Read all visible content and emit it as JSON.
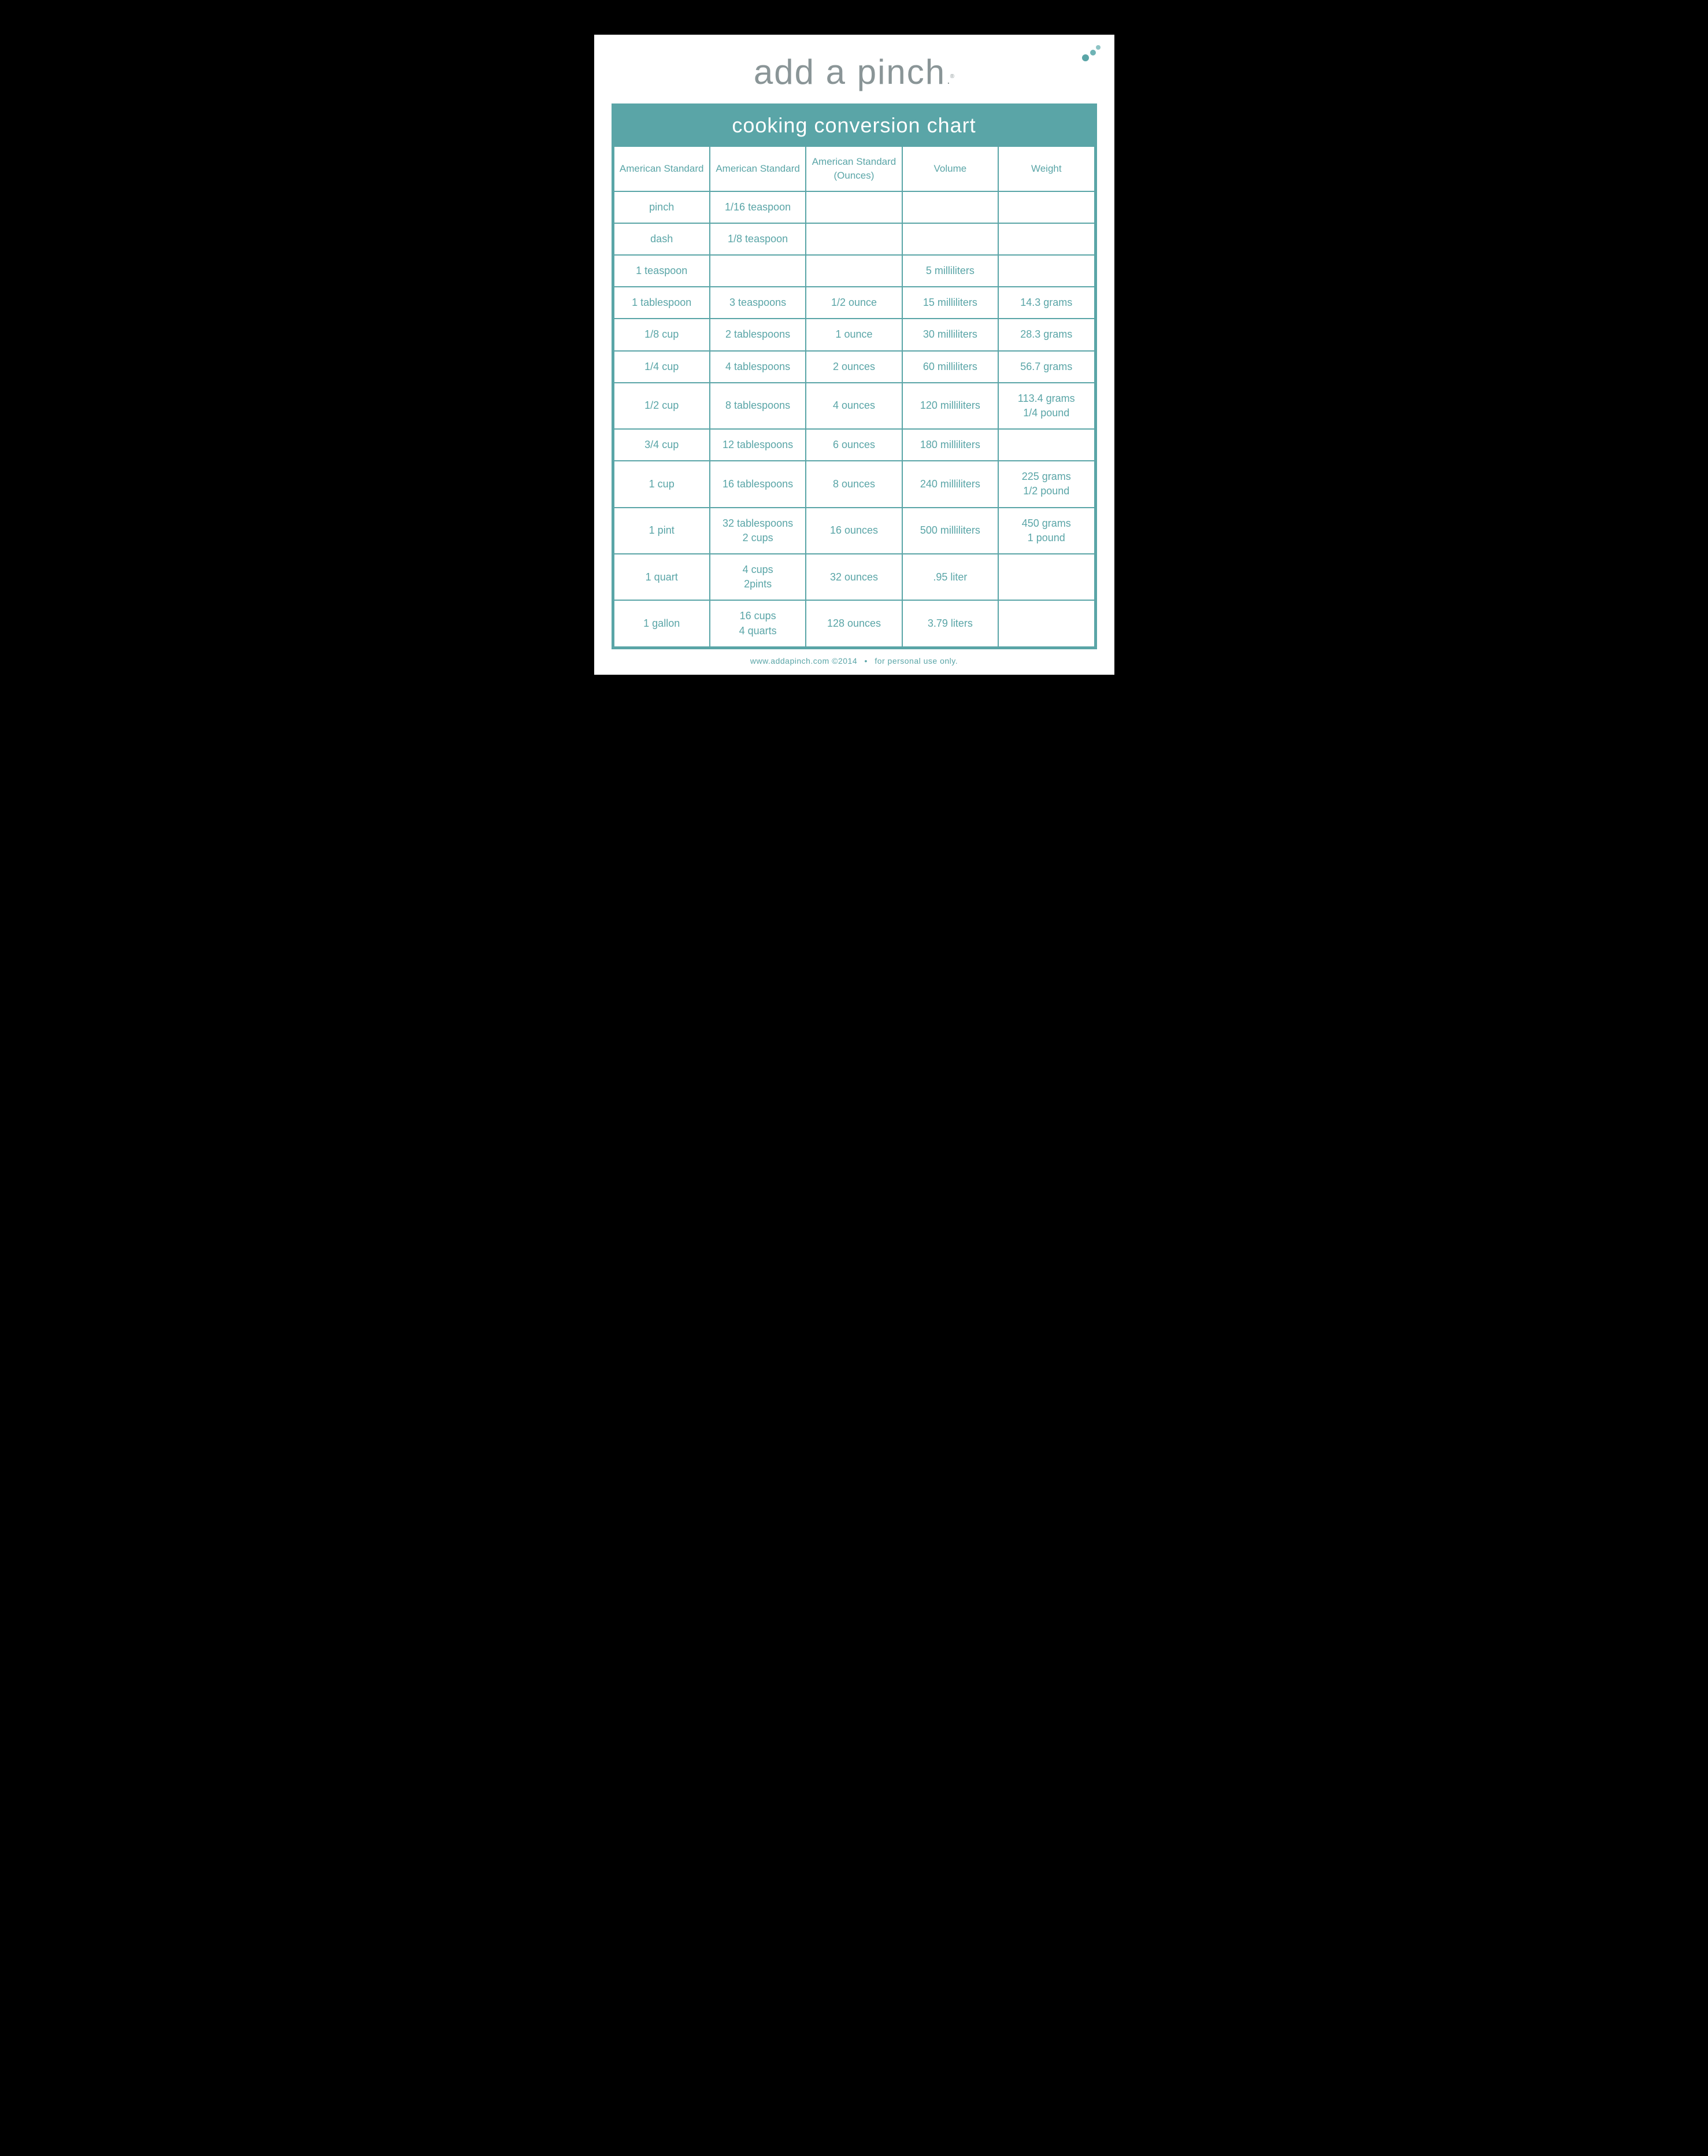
{
  "logo": {
    "text": "add a pinch"
  },
  "title": "cooking conversion chart",
  "columns": [
    "American Standard",
    "American Standard",
    "American Standard (Ounces)",
    "Volume",
    "Weight"
  ],
  "rows": [
    {
      "c0": "pinch",
      "c1": "1/16 teaspoon",
      "c2": "",
      "c3": "",
      "c4": ""
    },
    {
      "c0": "dash",
      "c1": "1/8 teaspoon",
      "c2": "",
      "c3": "",
      "c4": ""
    },
    {
      "c0": "1 teaspoon",
      "c1": "",
      "c2": "",
      "c3": "5 milliliters",
      "c4": ""
    },
    {
      "c0": "1 tablespoon",
      "c1": "3 teaspoons",
      "c2": "1/2 ounce",
      "c3": "15 milliliters",
      "c4": "14.3 grams"
    },
    {
      "c0": "1/8 cup",
      "c1": "2 tablespoons",
      "c2": "1 ounce",
      "c3": "30 milliliters",
      "c4": "28.3 grams"
    },
    {
      "c0": "1/4 cup",
      "c1": "4 tablespoons",
      "c2": "2 ounces",
      "c3": "60 milliliters",
      "c4": "56.7 grams"
    },
    {
      "c0": "1/2 cup",
      "c1": "8 tablespoons",
      "c2": "4 ounces",
      "c3": "120 milliliters",
      "c4": "113.4 grams\n1/4 pound"
    },
    {
      "c0": "3/4 cup",
      "c1": "12 tablespoons",
      "c2": "6 ounces",
      "c3": "180 milliliters",
      "c4": ""
    },
    {
      "c0": "1 cup",
      "c1": "16 tablespoons",
      "c2": "8 ounces",
      "c3": "240 milliliters",
      "c4": "225 grams\n1/2 pound"
    },
    {
      "c0": "1 pint",
      "c1": "32 tablespoons\n2 cups",
      "c2": "16 ounces",
      "c3": "500 milliliters",
      "c4": "450 grams\n1 pound"
    },
    {
      "c0": "1 quart",
      "c1": "4 cups\n2pints",
      "c2": "32 ounces",
      "c3": ".95 liter",
      "c4": ""
    },
    {
      "c0": "1 gallon",
      "c1": "16 cups\n4 quarts",
      "c2": "128 ounces",
      "c3": "3.79 liters",
      "c4": ""
    }
  ],
  "footer": {
    "site": "www.addapinch.com",
    "copyright": "©2014",
    "note": "for personal use only."
  },
  "colors": {
    "accent": "#5aa5a7",
    "logo_text": "#8a9597",
    "page_bg": "#ffffff",
    "outer_bg": "#000000"
  }
}
